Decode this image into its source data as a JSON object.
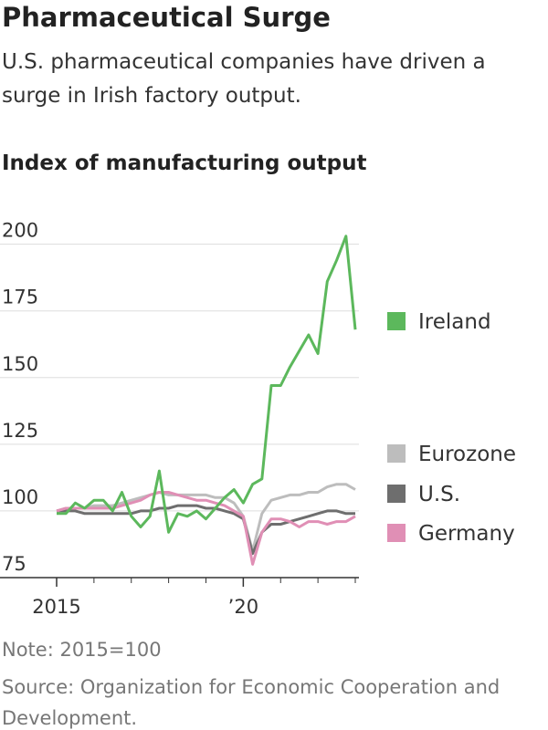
{
  "chart_data": {
    "type": "line",
    "title": "Pharmaceutical Surge",
    "subtitle": "U.S. pharmaceutical companies have driven a surge in Irish factory output.",
    "y_title": "Index of manufacturing output",
    "note": "Note: 2015=100",
    "source": "Source: Organization for Economic Cooperation and Development.",
    "x": [
      2015,
      2015.25,
      2015.5,
      2015.75,
      2016,
      2016.25,
      2016.5,
      2016.75,
      2017,
      2017.25,
      2017.5,
      2017.75,
      2018,
      2018.25,
      2018.5,
      2018.75,
      2019,
      2019.25,
      2019.5,
      2019.75,
      2020,
      2020.25,
      2020.5,
      2020.75,
      2021,
      2021.25,
      2021.5,
      2021.75,
      2022,
      2022.25,
      2022.5,
      2022.75,
      2023
    ],
    "series": [
      {
        "name": "Eurozone",
        "color": "#bdbdbd",
        "values": [
          100,
          101,
          101,
          101,
          102,
          102,
          102,
          103,
          104,
          105,
          106,
          107,
          106,
          106,
          106,
          106,
          106,
          105,
          105,
          103,
          98,
          85,
          99,
          104,
          105,
          106,
          106,
          107,
          107,
          109,
          110,
          110,
          108
        ]
      },
      {
        "name": "U.S.",
        "color": "#6e6e6e",
        "values": [
          100,
          100,
          100,
          99,
          99,
          99,
          99,
          99,
          99,
          100,
          100,
          101,
          101,
          102,
          102,
          102,
          101,
          101,
          100,
          99,
          97,
          84,
          92,
          95,
          95,
          96,
          97,
          98,
          99,
          100,
          100,
          99,
          99
        ]
      },
      {
        "name": "Germany",
        "color": "#e08fb5",
        "values": [
          100,
          101,
          101,
          101,
          101,
          101,
          101,
          102,
          103,
          104,
          106,
          107,
          107,
          106,
          105,
          104,
          104,
          103,
          102,
          100,
          98,
          80,
          92,
          97,
          97,
          96,
          94,
          96,
          96,
          95,
          96,
          96,
          98
        ]
      },
      {
        "name": "Ireland",
        "color": "#5cb85c",
        "values": [
          99,
          99,
          103,
          101,
          104,
          104,
          100,
          107,
          98,
          94,
          98,
          115,
          92,
          99,
          98,
          100,
          97,
          101,
          105,
          108,
          103,
          110,
          112,
          147,
          147,
          154,
          160,
          166,
          159,
          186,
          194,
          203,
          168
        ]
      }
    ],
    "xlim": [
      2015,
      2023
    ],
    "xticks": [
      2015,
      {
        "value": 2020,
        "label": "’20"
      }
    ],
    "minor_xticks": [
      2016,
      2017,
      2018,
      2019,
      2021,
      2022,
      2023
    ],
    "ylim": [
      75,
      205
    ],
    "yticks": [
      75,
      100,
      125,
      150,
      175,
      200
    ],
    "grid": true
  }
}
